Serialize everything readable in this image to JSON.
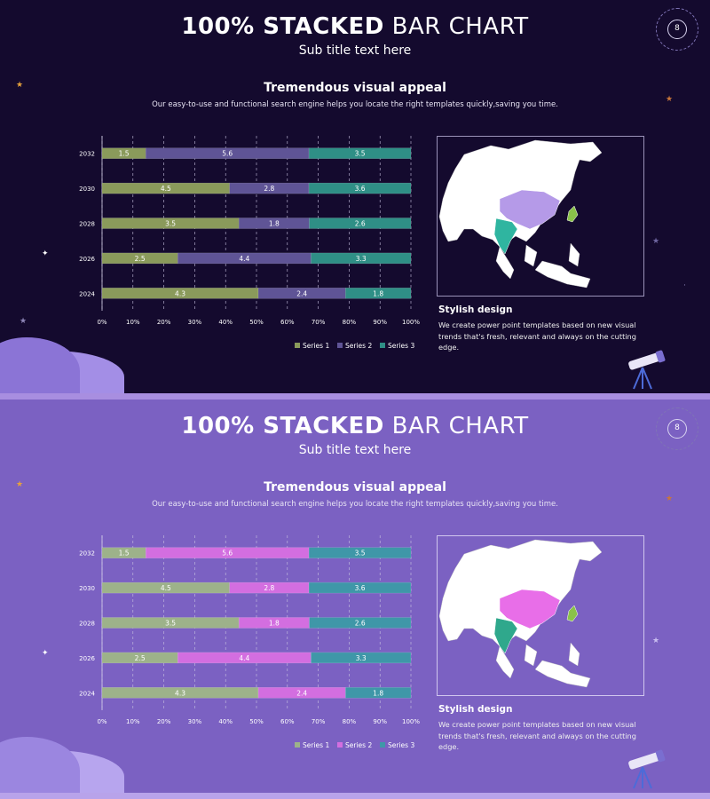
{
  "slides": [
    {
      "theme": "dark",
      "title_bold": "100% STACKED",
      "title_light": "BAR CHART",
      "subtitle": "Sub title text here",
      "section_heading": "Tremendous visual appeal",
      "section_description": "Our easy-to-use and functional search engine helps you locate the right templates quickly,saving you time.",
      "map_caption_title": "Stylish design",
      "map_caption_text": "We create power point templates based on new visual trends that's fresh, relevant and always on the cutting edge.",
      "badge_number": "8",
      "colors": {
        "series1": "#8a9a5b",
        "series2": "#5f5496",
        "series3": "#2f8f86",
        "background": "#140a2e",
        "map_land": "#ffffff",
        "map_china": "#b59ae8",
        "map_india": "#2fb5a0",
        "map_japan": "#8ac24a"
      }
    },
    {
      "theme": "light",
      "title_bold": "100% STACKED",
      "title_light": "BAR CHART",
      "subtitle": "Sub title text here",
      "section_heading": "Tremendous visual appeal",
      "section_description": "Our easy-to-use and functional search engine helps you locate the right templates quickly,saving you time.",
      "map_caption_title": "Stylish design",
      "map_caption_text": "We create power point templates based on new visual trends that's fresh, relevant and always on the cutting edge.",
      "badge_number": "8",
      "colors": {
        "series1": "#9db28a",
        "series2": "#d36ee0",
        "series3": "#3f97a8",
        "background": "#7b61c2",
        "map_land": "#ffffff",
        "map_china": "#e86ee8",
        "map_india": "#2fa88c",
        "map_japan": "#8ac24a"
      }
    }
  ],
  "chart_data": [
    {
      "type": "bar",
      "stacked": "percent",
      "orientation": "horizontal",
      "categories": [
        "2024",
        "2026",
        "2028",
        "2030",
        "2032"
      ],
      "series": [
        {
          "name": "Series 1",
          "values": [
            4.3,
            2.5,
            3.5,
            4.5,
            1.5
          ]
        },
        {
          "name": "Series 2",
          "values": [
            2.4,
            4.4,
            1.8,
            2.8,
            5.6
          ]
        },
        {
          "name": "Series 3",
          "values": [
            1.8,
            3.3,
            2.6,
            3.6,
            3.5
          ]
        }
      ],
      "x_ticks": [
        "0%",
        "10%",
        "20%",
        "30%",
        "40%",
        "50%",
        "60%",
        "70%",
        "80%",
        "90%",
        "100%"
      ],
      "xlim": [
        0,
        100
      ],
      "grid": "vertical dashed",
      "legend": "bottom"
    },
    {
      "type": "bar",
      "stacked": "percent",
      "orientation": "horizontal",
      "categories": [
        "2024",
        "2026",
        "2028",
        "2030",
        "2032"
      ],
      "series": [
        {
          "name": "Series 1",
          "values": [
            4.3,
            2.5,
            3.5,
            4.5,
            1.5
          ]
        },
        {
          "name": "Series 2",
          "values": [
            2.4,
            4.4,
            1.8,
            2.8,
            5.6
          ]
        },
        {
          "name": "Series 3",
          "values": [
            1.8,
            3.3,
            2.6,
            3.6,
            3.5
          ]
        }
      ],
      "x_ticks": [
        "0%",
        "10%",
        "20%",
        "30%",
        "40%",
        "50%",
        "60%",
        "70%",
        "80%",
        "90%",
        "100%"
      ],
      "xlim": [
        0,
        100
      ],
      "grid": "vertical dashed",
      "legend": "bottom"
    }
  ]
}
